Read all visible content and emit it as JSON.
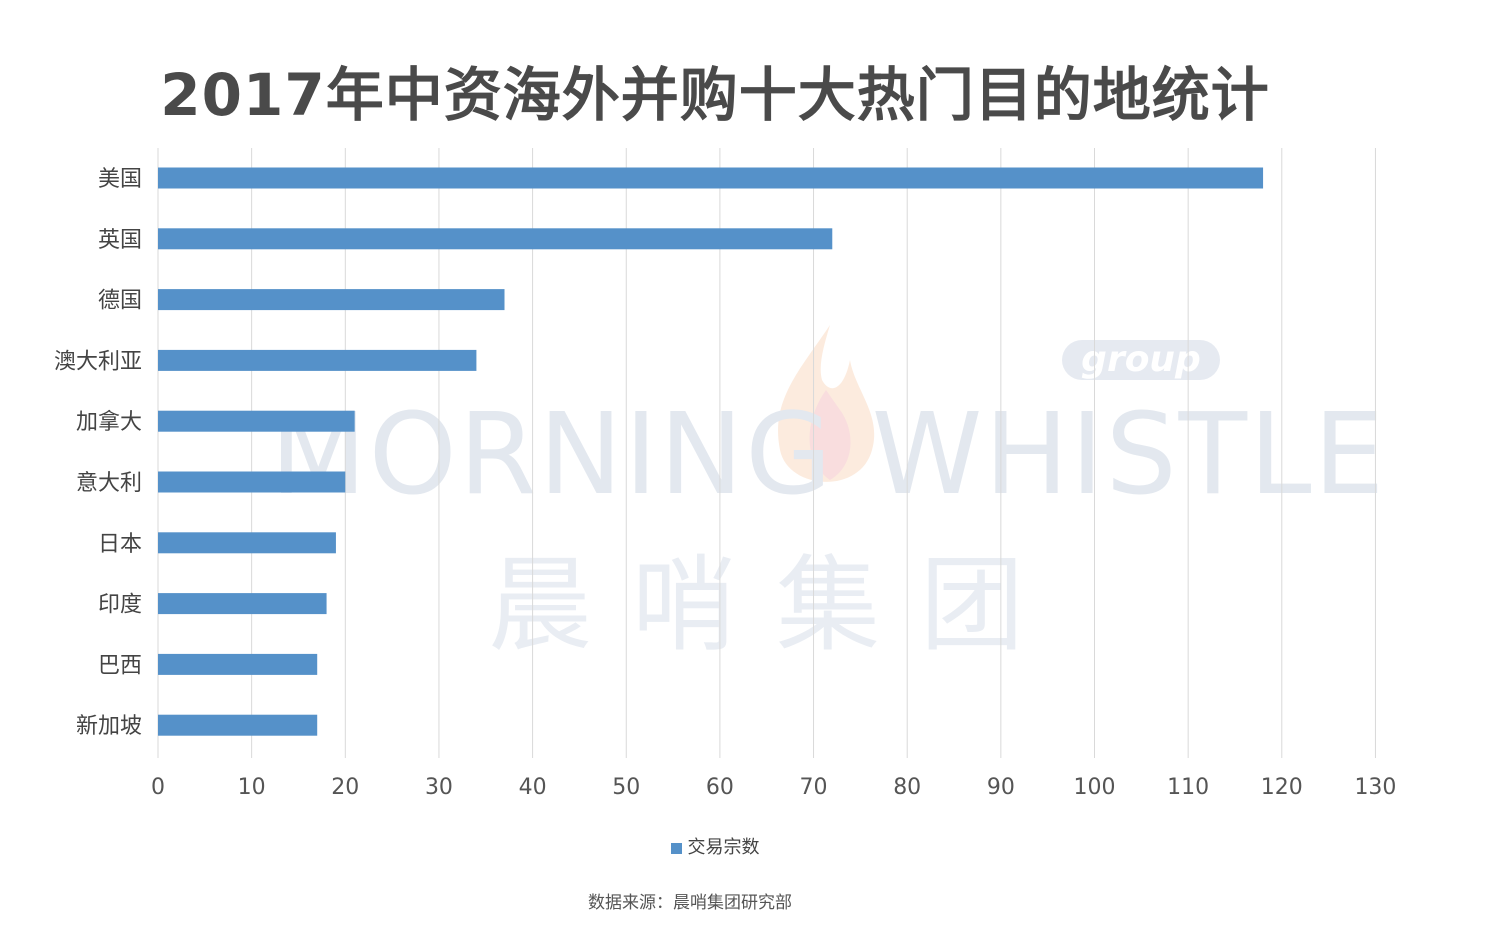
{
  "watermark": {
    "latin": "MORNING WHISTLE",
    "group": "group",
    "chinese": "晨哨集团"
  },
  "legend": {
    "label": "交易宗数"
  },
  "source": "数据来源：晨哨集团研究部",
  "colors": {
    "bar": "#5591c9",
    "grid": "#d9d9d9",
    "title": "#4a4a4a"
  },
  "chart_data": {
    "type": "bar",
    "orientation": "horizontal",
    "title": "2017年中资海外并购十大热门目的地统计",
    "categories": [
      "美国",
      "英国",
      "德国",
      "澳大利亚",
      "加拿大",
      "意大利",
      "日本",
      "印度",
      "巴西",
      "新加坡"
    ],
    "series": [
      {
        "name": "交易宗数",
        "values": [
          118,
          72,
          37,
          34,
          21,
          20,
          19,
          18,
          17,
          17
        ]
      }
    ],
    "xlim": [
      0,
      130
    ],
    "xticks": [
      0,
      10,
      20,
      30,
      40,
      50,
      60,
      70,
      80,
      90,
      100,
      110,
      120,
      130
    ],
    "grid": true,
    "legend_position": "bottom"
  }
}
